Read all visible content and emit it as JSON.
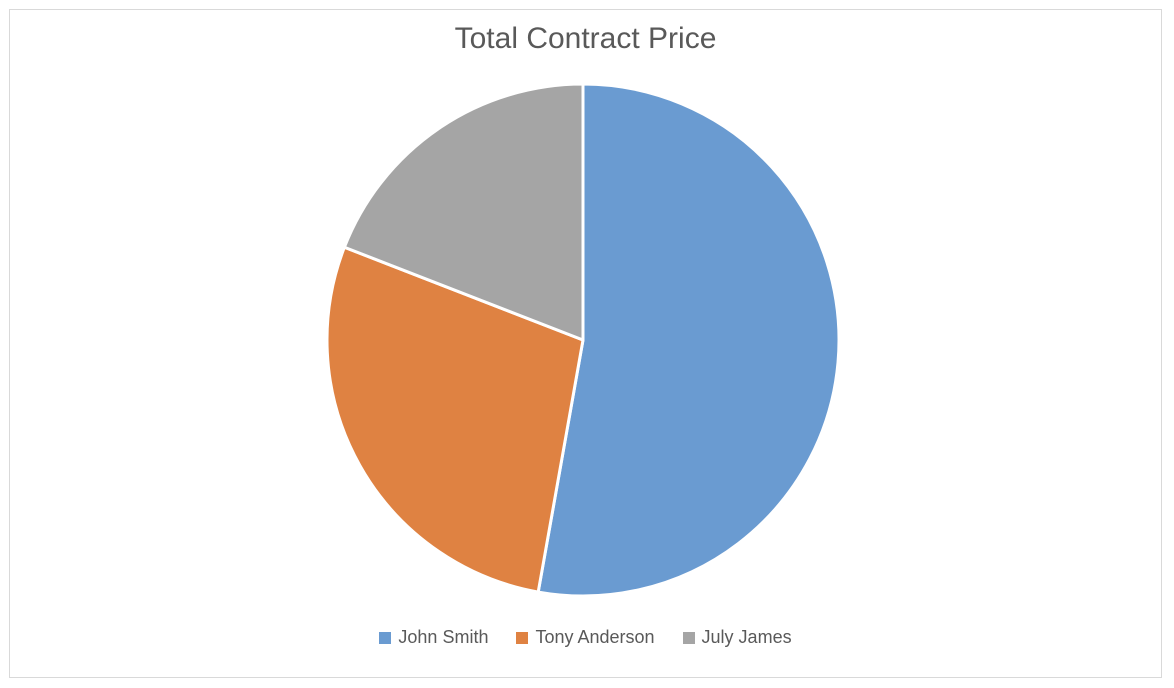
{
  "chart_data": {
    "type": "pie",
    "title": "Total Contract Price",
    "categories": [
      "John Smith",
      "Tony Anderson",
      "July James"
    ],
    "values": [
      52.8,
      28.1,
      19.1
    ],
    "colors": [
      "#6a9bd1",
      "#df8242",
      "#a5a5a5"
    ],
    "legend_position": "bottom"
  }
}
